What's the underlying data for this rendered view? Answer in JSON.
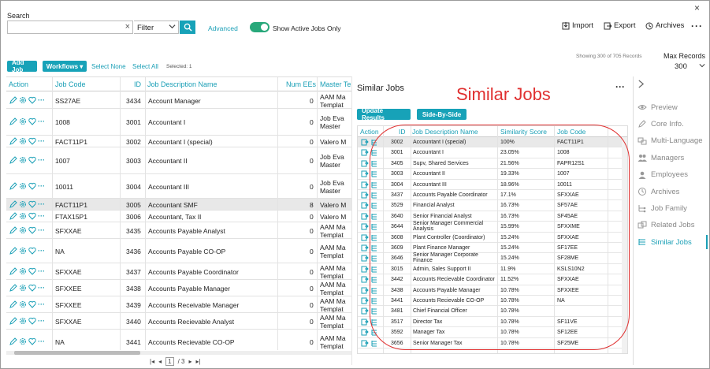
{
  "search": {
    "label": "Search",
    "value": "",
    "filter_value": "Filter",
    "advanced": "Advanced",
    "toggle_label": "Show Active Jobs Only",
    "toggle_on": true
  },
  "top_actions": {
    "import": "Import",
    "export": "Export",
    "archives": "Archives"
  },
  "toolbar": {
    "add_job": "Add Job",
    "workflows": "Workflows",
    "select_none": "Select None",
    "select_all": "Select All",
    "selected": "Selected: 1",
    "showing": "Showing 300 of 705 Records",
    "max_records_label": "Max Records",
    "max_records_value": "300"
  },
  "grid": {
    "headers": [
      "Action",
      "Job Code",
      "ID",
      "Job Description Name",
      "Num EEs",
      "Master Te"
    ],
    "rows": [
      {
        "code": "SS27AE",
        "id": "3434",
        "name": "Account Manager",
        "ees": "0",
        "master": [
          "AAM Ma",
          "Templat"
        ]
      },
      {
        "code": "1008",
        "id": "3001",
        "name": "Accountant I",
        "ees": "0",
        "master": [
          "Job Eva",
          "Master"
        ]
      },
      {
        "code": "FACT11P1",
        "id": "3002",
        "name": "Accountant I (special)",
        "ees": "0",
        "master": [
          "Valero M"
        ]
      },
      {
        "code": "1007",
        "id": "3003",
        "name": "Accountant II",
        "ees": "0",
        "master": [
          "Job Eva",
          "Master"
        ]
      },
      {
        "code": "10011",
        "id": "3004",
        "name": "Accountant III",
        "ees": "0",
        "master": [
          "Job Eva",
          "Master"
        ]
      },
      {
        "code": "FACT11P1",
        "id": "3005",
        "name": "Accountant SMF",
        "ees": "8",
        "master": [
          "Valero M"
        ]
      },
      {
        "code": "FTAX15P1",
        "id": "3006",
        "name": "Accountant, Tax II",
        "ees": "0",
        "master": [
          "Valero M"
        ]
      },
      {
        "code": "SFXXAE",
        "id": "3435",
        "name": "Accounts Payable Analyst",
        "ees": "0",
        "master": [
          "AAM Ma",
          "Templat"
        ]
      },
      {
        "code": "NA",
        "id": "3436",
        "name": "Accounts Payable CO-OP",
        "ees": "0",
        "master": [
          "AAM Ma",
          "Templat"
        ]
      },
      {
        "code": "SFXXAE",
        "id": "3437",
        "name": "Accounts Payable Coordinator",
        "ees": "0",
        "master": [
          "AAM Ma",
          "Templat"
        ]
      },
      {
        "code": "SFXXEE",
        "id": "3438",
        "name": "Accounts Payable Manager",
        "ees": "0",
        "master": [
          "AAM Ma",
          "Templat"
        ]
      },
      {
        "code": "SFXXEE",
        "id": "3439",
        "name": "Accounts Receivable Manager",
        "ees": "0",
        "master": [
          "AAM Ma",
          "Templat"
        ]
      },
      {
        "code": "SFXXAE",
        "id": "3440",
        "name": "Accounts Recievable Analyst",
        "ees": "0",
        "master": [
          "AAM Ma",
          "Templat"
        ]
      },
      {
        "code": "NA",
        "id": "3441",
        "name": "Accounts Recievable CO-OP",
        "ees": "0",
        "master": [
          "AAM Ma",
          "Templat"
        ]
      }
    ]
  },
  "pager": {
    "page": "1",
    "total": "/ 3"
  },
  "similar": {
    "title": "Similar Jobs",
    "annotation": "Similar Jobs",
    "update_results": "Update Results",
    "side_by_side": "Side-By-Side",
    "headers": [
      "Action",
      "ID",
      "Job Description Name",
      "Similarity Score",
      "Job Code"
    ],
    "rows": [
      {
        "id": "3002",
        "name": [
          "Accountant I (special)"
        ],
        "score": "100%",
        "code": "FACT11P1"
      },
      {
        "id": "3001",
        "name": [
          "Accountant I"
        ],
        "score": "23.05%",
        "code": "1008"
      },
      {
        "id": "3405",
        "name": [
          "Supv, Shared Services"
        ],
        "score": "21.56%",
        "code": "FAPR12S1"
      },
      {
        "id": "3003",
        "name": [
          "Accountant II"
        ],
        "score": "19.33%",
        "code": "1007"
      },
      {
        "id": "3004",
        "name": [
          "Accountant III"
        ],
        "score": "18.96%",
        "code": "10011"
      },
      {
        "id": "3437",
        "name": [
          "Accounts Payable Coordinator"
        ],
        "score": "17.1%",
        "code": "SFXXAE"
      },
      {
        "id": "3529",
        "name": [
          "Financial Analyst"
        ],
        "score": "16.73%",
        "code": "SF57AE"
      },
      {
        "id": "3640",
        "name": [
          "Senior Financial Analyst"
        ],
        "score": "16.73%",
        "code": "SF45AE"
      },
      {
        "id": "3644",
        "name": [
          "Senior Manager Commercial",
          "Analysis"
        ],
        "score": "15.99%",
        "code": "SFXXME"
      },
      {
        "id": "3608",
        "name": [
          "Plant Controller (Coordinator)"
        ],
        "score": "15.24%",
        "code": "SFXXAE"
      },
      {
        "id": "3609",
        "name": [
          "Plant Finance Manager"
        ],
        "score": "15.24%",
        "code": "SF17EE"
      },
      {
        "id": "3646",
        "name": [
          "Senior Manager Corporate",
          "Finance"
        ],
        "score": "15.24%",
        "code": "SF28ME"
      },
      {
        "id": "3015",
        "name": [
          "Admin, Sales Support II"
        ],
        "score": "11.9%",
        "code": "KSLS10N2"
      },
      {
        "id": "3442",
        "name": [
          "Accounts Recievable Coordinator"
        ],
        "score": "11.52%",
        "code": "SFXXAE"
      },
      {
        "id": "3438",
        "name": [
          "Accounts Payable Manager"
        ],
        "score": "10.78%",
        "code": "SFXXEE"
      },
      {
        "id": "3441",
        "name": [
          "Accounts Recievable CO-OP"
        ],
        "score": "10.78%",
        "code": "NA"
      },
      {
        "id": "3481",
        "name": [
          "Chief Financial Officer"
        ],
        "score": "10.78%",
        "code": ""
      },
      {
        "id": "3517",
        "name": [
          "Director Tax"
        ],
        "score": "10.78%",
        "code": "SF11VE"
      },
      {
        "id": "3592",
        "name": [
          "Manager Tax"
        ],
        "score": "10.78%",
        "code": "SF12EE"
      },
      {
        "id": "3656",
        "name": [
          "Senior Manager Tax"
        ],
        "score": "10.78%",
        "code": "SF25ME"
      }
    ]
  },
  "sidebar": {
    "items": [
      {
        "label": "Preview",
        "icon": "eye-icon"
      },
      {
        "label": "Core Info.",
        "icon": "edit-icon"
      },
      {
        "label": "Multi-Language",
        "icon": "language-icon"
      },
      {
        "label": "Managers",
        "icon": "users-icon"
      },
      {
        "label": "Employees",
        "icon": "user-icon"
      },
      {
        "label": "Archives",
        "icon": "history-icon"
      },
      {
        "label": "Job Family",
        "icon": "family-icon"
      },
      {
        "label": "Related Jobs",
        "icon": "link-icon"
      },
      {
        "label": "Similar Jobs",
        "icon": "similar-icon"
      }
    ]
  },
  "colors": {
    "accent": "#17a2b8",
    "annotation_red": "#e03030"
  }
}
